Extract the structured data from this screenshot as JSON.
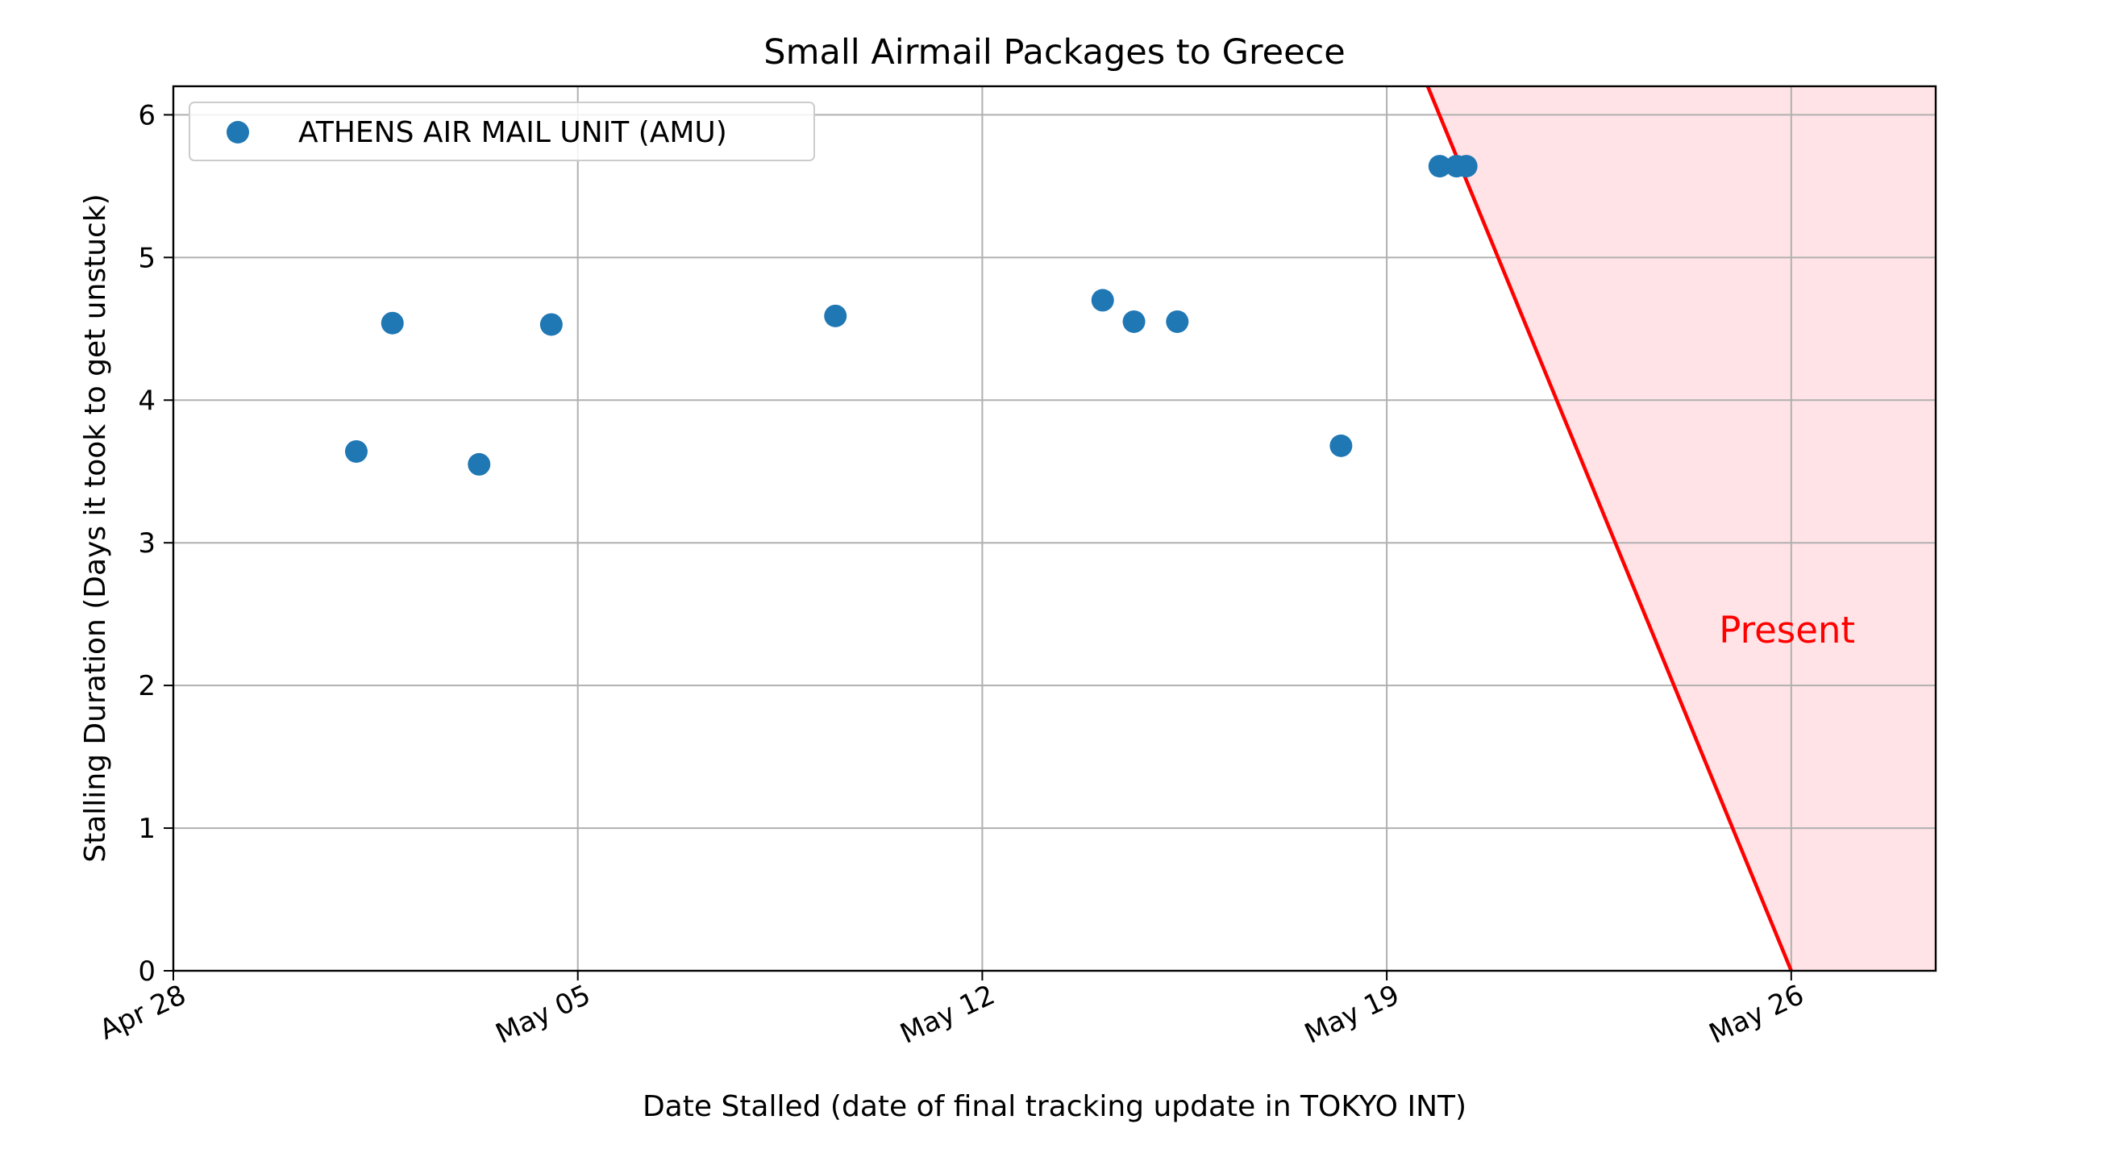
{
  "chart_data": {
    "type": "scatter",
    "title": "Small Airmail Packages to Greece",
    "xlabel": "Date Stalled (date of final tracking update in TOKYO INT)",
    "ylabel": "Stalling Duration (Days it took to get unstuck)",
    "x_type": "date",
    "xlim": [
      "2024-04-28",
      "2024-05-28 12:00"
    ],
    "ylim": [
      0,
      6.2
    ],
    "x_ticks": [
      {
        "date": "2024-04-28",
        "label": "Apr 28"
      },
      {
        "date": "2024-05-05",
        "label": "May 05"
      },
      {
        "date": "2024-05-12",
        "label": "May 12"
      },
      {
        "date": "2024-05-19",
        "label": "May 19"
      },
      {
        "date": "2024-05-26",
        "label": "May 26"
      }
    ],
    "y_ticks": [
      0,
      1,
      2,
      3,
      4,
      5,
      6
    ],
    "grid": true,
    "legend": {
      "placement": "top-left"
    },
    "series": [
      {
        "name": "ATHENS AIR MAIL UNIT (AMU)",
        "color": "#1f77b4",
        "points": [
          {
            "x": "2024-05-01 04:00",
            "y": 3.64
          },
          {
            "x": "2024-05-01 19:00",
            "y": 4.54
          },
          {
            "x": "2024-05-03 07:00",
            "y": 3.55
          },
          {
            "x": "2024-05-04 13:00",
            "y": 4.53
          },
          {
            "x": "2024-05-09 11:00",
            "y": 4.59
          },
          {
            "x": "2024-05-14 02:00",
            "y": 4.7
          },
          {
            "x": "2024-05-14 15:00",
            "y": 4.55
          },
          {
            "x": "2024-05-15 09:00",
            "y": 4.55
          },
          {
            "x": "2024-05-18 05:00",
            "y": 3.68
          },
          {
            "x": "2024-05-19 22:00",
            "y": 5.64
          },
          {
            "x": "2024-05-20 05:00",
            "y": 5.64
          },
          {
            "x": "2024-05-20 09:00",
            "y": 5.64
          }
        ]
      }
    ],
    "present_line": {
      "color": "#ff0000",
      "fill_color": "#ffe3e6",
      "start": {
        "x": "2024-05-19 17:00",
        "y": 6.2
      },
      "end": {
        "x": "2024-05-26",
        "y": 0
      }
    },
    "annotation": {
      "text": "Present",
      "x": "2024-05-24 18:00",
      "y": 2.3,
      "color": "#ff0000"
    }
  }
}
